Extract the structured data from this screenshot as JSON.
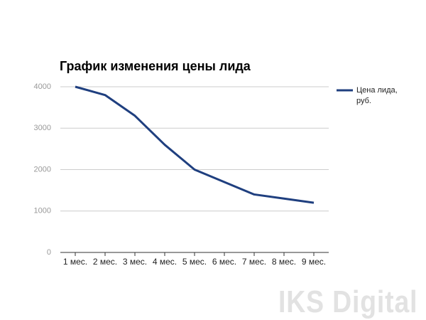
{
  "chart_data": {
    "type": "line",
    "title": "График изменения цены лида",
    "categories": [
      "1 мес.",
      "2 мес.",
      "3 мес.",
      "4 мес.",
      "5 мес.",
      "6 мес.",
      "7 мес.",
      "8 мес.",
      "9 мес."
    ],
    "series": [
      {
        "name": "Цена лида, руб.",
        "color": "#1f3f7f",
        "values": [
          4000,
          3800,
          3300,
          2600,
          2000,
          1700,
          1400,
          1300,
          1200
        ]
      }
    ],
    "ylim": [
      0,
      4000
    ],
    "yticks": [
      0,
      1000,
      2000,
      3000,
      4000
    ],
    "grid": true,
    "legend": "right"
  },
  "watermark": "IKS Digital"
}
